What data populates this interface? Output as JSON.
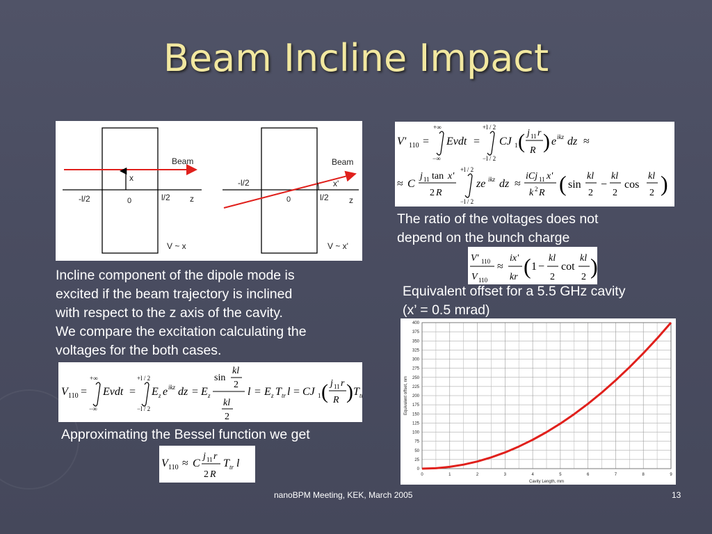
{
  "slide": {
    "title": "Beam Incline Impact",
    "footer_center": "nanoBPM Meeting, KEK, March 2005",
    "page_number": "13"
  },
  "diagram": {
    "beam_label": "Beam",
    "x_label": "x",
    "xprime_label": "x'",
    "neg_half_l": "-l/2",
    "pos_half_l": "l/2",
    "zero": "0",
    "z_label": "z",
    "v_x": "V ~ x",
    "v_xprime": "V ~ x'"
  },
  "text": {
    "incline_para": [
      "Incline component of the dipole mode is",
      "excited if the beam trajectory is inclined",
      "with respect to the z axis of the cavity.",
      "We compare the excitation calculating the",
      "voltages for the both cases."
    ],
    "approx_line": "Approximating the Bessel function we get",
    "ratio_line1": "The ratio of the voltages does not",
    "ratio_line2": "depend  on the bunch charge",
    "equiv_line1": "Equivalent offset for a 5.5 GHz cavity",
    "equiv_line2": "(x’ = 0.5 mrad)"
  },
  "chart_data": {
    "type": "line",
    "title": "",
    "xlabel": "Cavity Length, mm",
    "ylabel": "Equivalent offset, nm",
    "xlim": [
      0,
      9
    ],
    "ylim": [
      0,
      400
    ],
    "x_ticks": [
      "0",
      "1",
      "2",
      "3",
      "4",
      "5",
      "6",
      "7",
      "8",
      "9"
    ],
    "y_ticks": [
      "0",
      "25",
      "50",
      "75",
      "100",
      "125",
      "150",
      "175",
      "200",
      "225",
      "250",
      "275",
      "300",
      "325",
      "350",
      "375",
      "400"
    ],
    "grid": true,
    "series": [
      {
        "color": "#e0201c",
        "x": [
          0,
          0.5,
          1,
          1.5,
          2,
          2.5,
          3,
          3.5,
          4,
          4.5,
          5,
          5.5,
          6,
          6.5,
          7,
          7.5,
          8,
          8.5,
          9
        ],
        "y": [
          0,
          1.2,
          4.9,
          11.1,
          19.7,
          30.8,
          44.4,
          60.5,
          79,
          100,
          123.5,
          149.4,
          177.8,
          208.6,
          242,
          277.8,
          316,
          356.8,
          400
        ]
      }
    ]
  }
}
